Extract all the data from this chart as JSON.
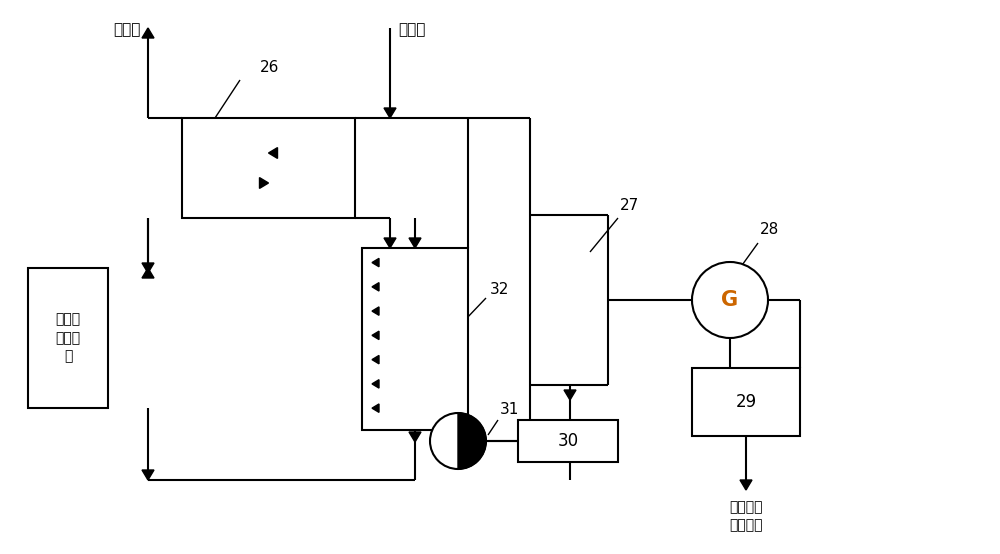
{
  "bg_color": "#ffffff",
  "line_color": "#000000",
  "G_color": "#cc6600",
  "figsize": [
    10.0,
    5.54
  ],
  "dpi": 100,
  "labels": {
    "smoke_out": "烟气出",
    "smoke_in": "烟气进",
    "cylinder_water": "缸套水\n循环系\n统",
    "to_system": "至该系统\n用电单位",
    "G": "G"
  },
  "numbers": {
    "26": "26",
    "27": "27",
    "28": "28",
    "29": "29",
    "30": "30",
    "31": "31",
    "32": "32"
  }
}
